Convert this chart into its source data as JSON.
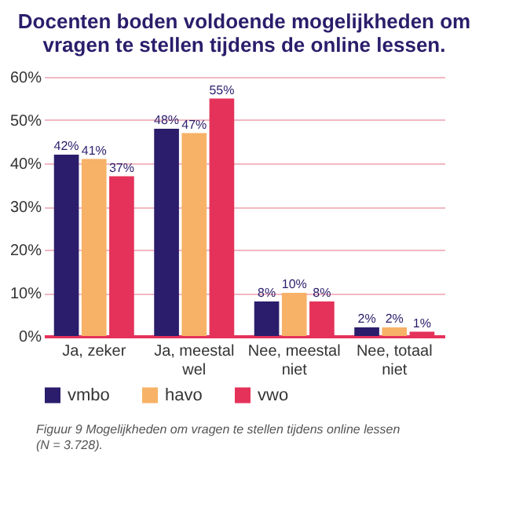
{
  "chart_data": {
    "type": "bar",
    "title": "Docenten boden voldoende mogelijkheden om vragen te stellen tijdens de online lessen.",
    "categories": [
      "Ja, zeker",
      "Ja, meestal wel",
      "Nee, meestal niet",
      "Nee, totaal niet"
    ],
    "series": [
      {
        "name": "vmbo",
        "color": "#2b1d6b",
        "values": [
          42,
          48,
          8,
          2
        ],
        "value_labels": [
          "42%",
          "48%",
          "8%",
          "2%"
        ]
      },
      {
        "name": "havo",
        "color": "#f7b267",
        "values": [
          41,
          47,
          10,
          2
        ],
        "value_labels": [
          "41%",
          "47%",
          "10%",
          "2%"
        ]
      },
      {
        "name": "vwo",
        "color": "#e5325a",
        "values": [
          37,
          55,
          8,
          1
        ],
        "value_labels": [
          "37%",
          "55%",
          "8%",
          "1%"
        ]
      }
    ],
    "ylim": [
      0,
      60
    ],
    "yticks": [
      {
        "value": 0,
        "label": "0%"
      },
      {
        "value": 10,
        "label": "10%"
      },
      {
        "value": 20,
        "label": "20%"
      },
      {
        "value": 30,
        "label": "30%"
      },
      {
        "value": 40,
        "label": "40%"
      },
      {
        "value": 50,
        "label": "50%"
      },
      {
        "value": 60,
        "label": "60%"
      }
    ],
    "grid": "y",
    "legend": "bottom",
    "annotations": [
      "Figuur 9 Mogelijkheden om vragen te stellen tijdens online lessen (N = 3.728)."
    ]
  }
}
